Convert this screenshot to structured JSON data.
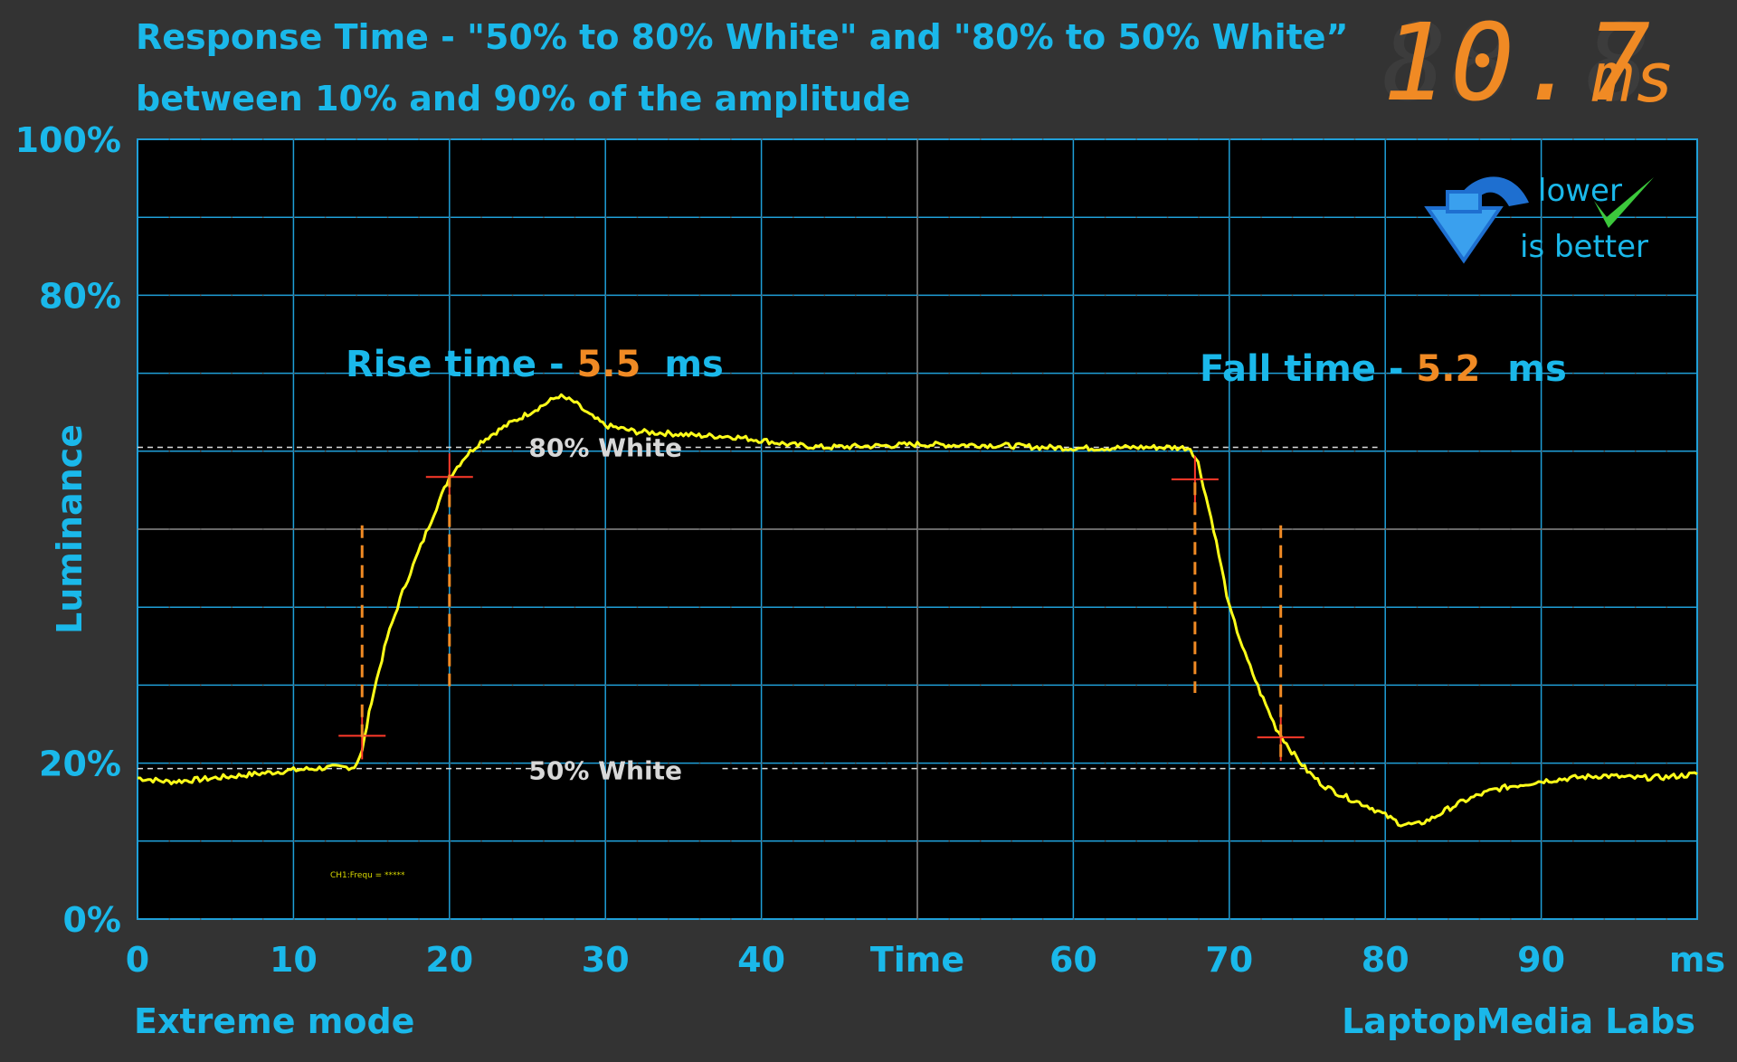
{
  "colors": {
    "background": "#333333",
    "plot_bg": "#000000",
    "grid": "#1f9fd8",
    "accent_text": "#1ab8ea",
    "value_orange": "#f08a24",
    "trace": "#ffff1a",
    "marker": "#ff3a2a",
    "ref_text": "#d8d8d8"
  },
  "header": {
    "title_line1": "Response Time - \"50% to 80% White\" and \"80% to 50% White”",
    "title_line2": "between 10% and 90% of the amplitude",
    "total_value": "10.7",
    "total_unit": "ms"
  },
  "badge": {
    "line1": "lower",
    "line2": "is better",
    "icon": "blue-curved-down-arrow-icon",
    "check_icon": "green-checkmark-icon"
  },
  "footer": {
    "mode": "Extreme mode",
    "brand": "LaptopMedia Labs"
  },
  "scope_label": "CH1:Frequ = *****",
  "chart_data": {
    "type": "line",
    "xlabel": "Time",
    "ylabel": "Luminance",
    "x_unit": "ms",
    "xlim": [
      0,
      100
    ],
    "ylim": [
      0,
      100
    ],
    "grid": true,
    "x_ticks": [
      0,
      10,
      20,
      30,
      40,
      50,
      60,
      70,
      80,
      90,
      100
    ],
    "x_tick_labels": [
      "0",
      "10",
      "20",
      "30",
      "40",
      "Time",
      "60",
      "70",
      "80",
      "90",
      "ms"
    ],
    "y_ticks": [
      0,
      20,
      80,
      100
    ],
    "y_tick_labels": [
      "0%",
      "20%",
      "80%",
      "100%"
    ],
    "reference_lines": [
      {
        "label": "80% White",
        "y": 60.5
      },
      {
        "label": "50% White",
        "y": 19.3
      }
    ],
    "annotations": {
      "rise_label": "Rise time - ",
      "rise_value": "5.5",
      "rise_unit": "ms",
      "fall_label": "Fall time - ",
      "fall_value": "5.2",
      "fall_unit": "ms"
    },
    "rise_markers": {
      "start_x": 14.4,
      "start_y": 23.5,
      "end_x": 20.0,
      "end_y": 56.7
    },
    "fall_markers": {
      "start_x": 67.8,
      "start_y": 56.4,
      "end_x": 73.3,
      "end_y": 23.3
    },
    "series": [
      {
        "values": [
          [
            0,
            18.1
          ],
          [
            2,
            17.6
          ],
          [
            4,
            17.9
          ],
          [
            6,
            18.3
          ],
          [
            8,
            18.7
          ],
          [
            10,
            19.1
          ],
          [
            12,
            19.4
          ],
          [
            13.9,
            19.5
          ],
          [
            14.4,
            21.5
          ],
          [
            15,
            28
          ],
          [
            16,
            36
          ],
          [
            17,
            42
          ],
          [
            18,
            47
          ],
          [
            19,
            52
          ],
          [
            20,
            56.7
          ],
          [
            21,
            59.3
          ],
          [
            22,
            61.2
          ],
          [
            23,
            62.5
          ],
          [
            24,
            63.7
          ],
          [
            25,
            64.8
          ],
          [
            26,
            65.9
          ],
          [
            27,
            67.1
          ],
          [
            28,
            66.3
          ],
          [
            29,
            64.6
          ],
          [
            30,
            63.3
          ],
          [
            32,
            62.5
          ],
          [
            34,
            62.3
          ],
          [
            36,
            62.0
          ],
          [
            38,
            61.9
          ],
          [
            40,
            61.4
          ],
          [
            42,
            60.8
          ],
          [
            44,
            60.5
          ],
          [
            46,
            60.6
          ],
          [
            48,
            60.7
          ],
          [
            50,
            60.9
          ],
          [
            52,
            60.8
          ],
          [
            54,
            60.8
          ],
          [
            56,
            60.7
          ],
          [
            58,
            60.5
          ],
          [
            60,
            60.4
          ],
          [
            62,
            60.4
          ],
          [
            64,
            60.5
          ],
          [
            66,
            60.5
          ],
          [
            67.5,
            60.4
          ],
          [
            68,
            58.5
          ],
          [
            69,
            50
          ],
          [
            70,
            40
          ],
          [
            71,
            34
          ],
          [
            72,
            29
          ],
          [
            73,
            24.5
          ],
          [
            74,
            21.5
          ],
          [
            75,
            19
          ],
          [
            76,
            17.2
          ],
          [
            77,
            16.1
          ],
          [
            78,
            15.2
          ],
          [
            79,
            14.4
          ],
          [
            80,
            13.3
          ],
          [
            81,
            12.2
          ],
          [
            82,
            12.1
          ],
          [
            83,
            12.9
          ],
          [
            84,
            14.1
          ],
          [
            85,
            15.1
          ],
          [
            86,
            15.9
          ],
          [
            87,
            16.6
          ],
          [
            88,
            17.0
          ],
          [
            90,
            17.7
          ],
          [
            92,
            18.1
          ],
          [
            94,
            18.4
          ],
          [
            96,
            18.1
          ],
          [
            98,
            18.2
          ],
          [
            100,
            18.6
          ]
        ]
      }
    ]
  }
}
